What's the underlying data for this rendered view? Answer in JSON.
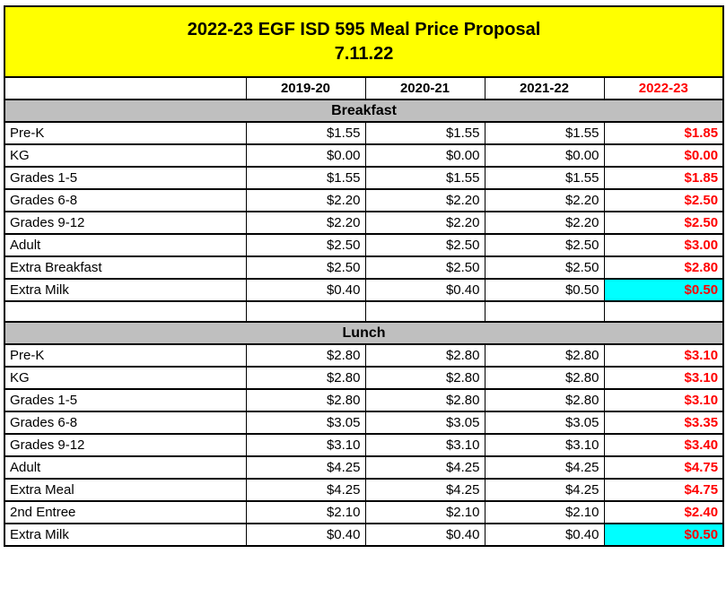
{
  "title": {
    "line1": "2022-23 EGF ISD 595 Meal Price Proposal",
    "line2": "7.11.22"
  },
  "columns": [
    "",
    "2019-20",
    "2020-21",
    "2021-22",
    "2022-23"
  ],
  "sections": [
    {
      "name": "Breakfast",
      "rows": [
        {
          "label": "Pre-K",
          "values": [
            "$1.55",
            "$1.55",
            "$1.55",
            "$1.85"
          ],
          "highlight_last": false
        },
        {
          "label": "KG",
          "values": [
            "$0.00",
            "$0.00",
            "$0.00",
            "$0.00"
          ],
          "highlight_last": false
        },
        {
          "label": "Grades 1-5",
          "values": [
            "$1.55",
            "$1.55",
            "$1.55",
            "$1.85"
          ],
          "highlight_last": false
        },
        {
          "label": "Grades 6-8",
          "values": [
            "$2.20",
            "$2.20",
            "$2.20",
            "$2.50"
          ],
          "highlight_last": false
        },
        {
          "label": "Grades 9-12",
          "values": [
            "$2.20",
            "$2.20",
            "$2.20",
            "$2.50"
          ],
          "highlight_last": false
        },
        {
          "label": "Adult",
          "values": [
            "$2.50",
            "$2.50",
            "$2.50",
            "$3.00"
          ],
          "highlight_last": false
        },
        {
          "label": "Extra Breakfast",
          "values": [
            "$2.50",
            "$2.50",
            "$2.50",
            "$2.80"
          ],
          "highlight_last": false
        },
        {
          "label": "Extra Milk",
          "values": [
            "$0.40",
            "$0.40",
            "$0.50",
            "$0.50"
          ],
          "highlight_last": true
        }
      ]
    },
    {
      "name": "Lunch",
      "rows": [
        {
          "label": "Pre-K",
          "values": [
            "$2.80",
            "$2.80",
            "$2.80",
            "$3.10"
          ],
          "highlight_last": false
        },
        {
          "label": "KG",
          "values": [
            "$2.80",
            "$2.80",
            "$2.80",
            "$3.10"
          ],
          "highlight_last": false
        },
        {
          "label": "Grades 1-5",
          "values": [
            "$2.80",
            "$2.80",
            "$2.80",
            "$3.10"
          ],
          "highlight_last": false
        },
        {
          "label": "Grades 6-8",
          "values": [
            "$3.05",
            "$3.05",
            "$3.05",
            "$3.35"
          ],
          "highlight_last": false
        },
        {
          "label": "Grades 9-12",
          "values": [
            "$3.10",
            "$3.10",
            "$3.10",
            "$3.40"
          ],
          "highlight_last": false
        },
        {
          "label": "Adult",
          "values": [
            "$4.25",
            "$4.25",
            "$4.25",
            "$4.75"
          ],
          "highlight_last": false
        },
        {
          "label": "Extra Meal",
          "values": [
            "$4.25",
            "$4.25",
            "$4.25",
            "$4.75"
          ],
          "highlight_last": false
        },
        {
          "label": "2nd Entree",
          "values": [
            "$2.10",
            "$2.10",
            "$2.10",
            "$2.40"
          ],
          "highlight_last": false
        },
        {
          "label": "Extra Milk",
          "values": [
            "$0.40",
            "$0.40",
            "$0.40",
            "$0.50"
          ],
          "highlight_last": true
        }
      ]
    }
  ],
  "colors": {
    "title_bg": "#ffff00",
    "section_bg": "#bfbfbf",
    "highlight_bg": "#00ffff",
    "proposal_text": "#ff0000"
  }
}
